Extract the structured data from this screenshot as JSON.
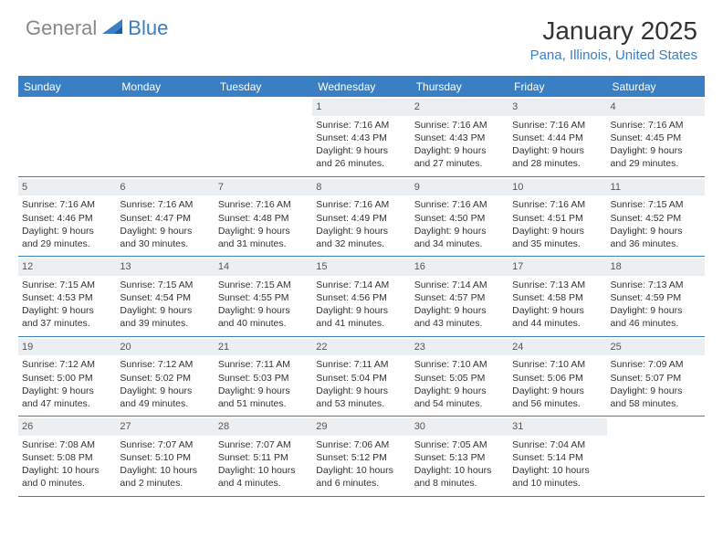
{
  "logo": {
    "text1": "General",
    "text2": "Blue"
  },
  "title": "January 2025",
  "location": "Pana, Illinois, United States",
  "colors": {
    "accent": "#3a7fc4",
    "header_bg": "#3a7fc4",
    "daynum_bg": "#eceff1",
    "text": "#333333",
    "logo_gray": "#888888"
  },
  "day_headers": [
    "Sunday",
    "Monday",
    "Tuesday",
    "Wednesday",
    "Thursday",
    "Friday",
    "Saturday"
  ],
  "weeks": [
    [
      null,
      null,
      null,
      {
        "n": "1",
        "sr": "7:16 AM",
        "ss": "4:43 PM",
        "dl": "9 hours and 26 minutes."
      },
      {
        "n": "2",
        "sr": "7:16 AM",
        "ss": "4:43 PM",
        "dl": "9 hours and 27 minutes."
      },
      {
        "n": "3",
        "sr": "7:16 AM",
        "ss": "4:44 PM",
        "dl": "9 hours and 28 minutes."
      },
      {
        "n": "4",
        "sr": "7:16 AM",
        "ss": "4:45 PM",
        "dl": "9 hours and 29 minutes."
      }
    ],
    [
      {
        "n": "5",
        "sr": "7:16 AM",
        "ss": "4:46 PM",
        "dl": "9 hours and 29 minutes."
      },
      {
        "n": "6",
        "sr": "7:16 AM",
        "ss": "4:47 PM",
        "dl": "9 hours and 30 minutes."
      },
      {
        "n": "7",
        "sr": "7:16 AM",
        "ss": "4:48 PM",
        "dl": "9 hours and 31 minutes."
      },
      {
        "n": "8",
        "sr": "7:16 AM",
        "ss": "4:49 PM",
        "dl": "9 hours and 32 minutes."
      },
      {
        "n": "9",
        "sr": "7:16 AM",
        "ss": "4:50 PM",
        "dl": "9 hours and 34 minutes."
      },
      {
        "n": "10",
        "sr": "7:16 AM",
        "ss": "4:51 PM",
        "dl": "9 hours and 35 minutes."
      },
      {
        "n": "11",
        "sr": "7:15 AM",
        "ss": "4:52 PM",
        "dl": "9 hours and 36 minutes."
      }
    ],
    [
      {
        "n": "12",
        "sr": "7:15 AM",
        "ss": "4:53 PM",
        "dl": "9 hours and 37 minutes."
      },
      {
        "n": "13",
        "sr": "7:15 AM",
        "ss": "4:54 PM",
        "dl": "9 hours and 39 minutes."
      },
      {
        "n": "14",
        "sr": "7:15 AM",
        "ss": "4:55 PM",
        "dl": "9 hours and 40 minutes."
      },
      {
        "n": "15",
        "sr": "7:14 AM",
        "ss": "4:56 PM",
        "dl": "9 hours and 41 minutes."
      },
      {
        "n": "16",
        "sr": "7:14 AM",
        "ss": "4:57 PM",
        "dl": "9 hours and 43 minutes."
      },
      {
        "n": "17",
        "sr": "7:13 AM",
        "ss": "4:58 PM",
        "dl": "9 hours and 44 minutes."
      },
      {
        "n": "18",
        "sr": "7:13 AM",
        "ss": "4:59 PM",
        "dl": "9 hours and 46 minutes."
      }
    ],
    [
      {
        "n": "19",
        "sr": "7:12 AM",
        "ss": "5:00 PM",
        "dl": "9 hours and 47 minutes."
      },
      {
        "n": "20",
        "sr": "7:12 AM",
        "ss": "5:02 PM",
        "dl": "9 hours and 49 minutes."
      },
      {
        "n": "21",
        "sr": "7:11 AM",
        "ss": "5:03 PM",
        "dl": "9 hours and 51 minutes."
      },
      {
        "n": "22",
        "sr": "7:11 AM",
        "ss": "5:04 PM",
        "dl": "9 hours and 53 minutes."
      },
      {
        "n": "23",
        "sr": "7:10 AM",
        "ss": "5:05 PM",
        "dl": "9 hours and 54 minutes."
      },
      {
        "n": "24",
        "sr": "7:10 AM",
        "ss": "5:06 PM",
        "dl": "9 hours and 56 minutes."
      },
      {
        "n": "25",
        "sr": "7:09 AM",
        "ss": "5:07 PM",
        "dl": "9 hours and 58 minutes."
      }
    ],
    [
      {
        "n": "26",
        "sr": "7:08 AM",
        "ss": "5:08 PM",
        "dl": "10 hours and 0 minutes."
      },
      {
        "n": "27",
        "sr": "7:07 AM",
        "ss": "5:10 PM",
        "dl": "10 hours and 2 minutes."
      },
      {
        "n": "28",
        "sr": "7:07 AM",
        "ss": "5:11 PM",
        "dl": "10 hours and 4 minutes."
      },
      {
        "n": "29",
        "sr": "7:06 AM",
        "ss": "5:12 PM",
        "dl": "10 hours and 6 minutes."
      },
      {
        "n": "30",
        "sr": "7:05 AM",
        "ss": "5:13 PM",
        "dl": "10 hours and 8 minutes."
      },
      {
        "n": "31",
        "sr": "7:04 AM",
        "ss": "5:14 PM",
        "dl": "10 hours and 10 minutes."
      },
      null
    ]
  ],
  "labels": {
    "sunrise": "Sunrise:",
    "sunset": "Sunset:",
    "daylight": "Daylight:"
  }
}
